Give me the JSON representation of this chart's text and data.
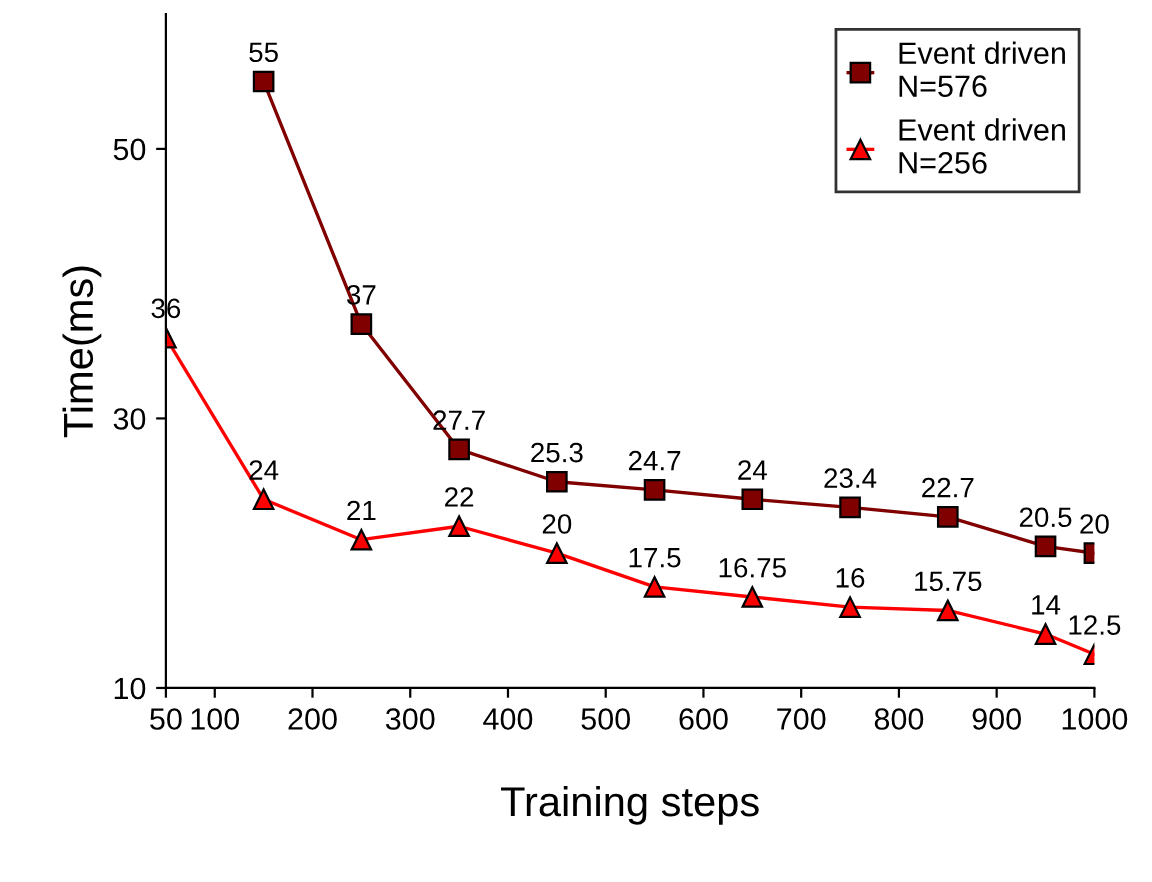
{
  "chart_data": {
    "type": "line",
    "xlabel": "Training steps",
    "ylabel": "Time(ms)",
    "x": [
      50,
      150,
      250,
      350,
      450,
      550,
      650,
      750,
      850,
      950,
      1000
    ],
    "series": [
      {
        "name": "Event driven\nN=576",
        "color": "#800000",
        "marker": "square",
        "values": [
          null,
          55,
          37,
          27.7,
          25.3,
          24.7,
          24,
          23.4,
          22.7,
          20.5,
          20
        ]
      },
      {
        "name": "Event driven\nN=256",
        "color": "#ff0000",
        "marker": "triangle",
        "values": [
          36,
          24,
          21,
          22,
          20,
          17.5,
          16.75,
          16,
          15.75,
          14,
          12.5
        ]
      }
    ],
    "xlim": [
      50,
      1000
    ],
    "xticks": [
      50,
      100,
      200,
      300,
      400,
      500,
      600,
      700,
      800,
      900,
      1000
    ],
    "ylim": [
      10,
      60
    ],
    "yticks": [
      10,
      30,
      50
    ],
    "data_labels": true,
    "legend": "top right",
    "grid": false,
    "line_style": "solid"
  }
}
